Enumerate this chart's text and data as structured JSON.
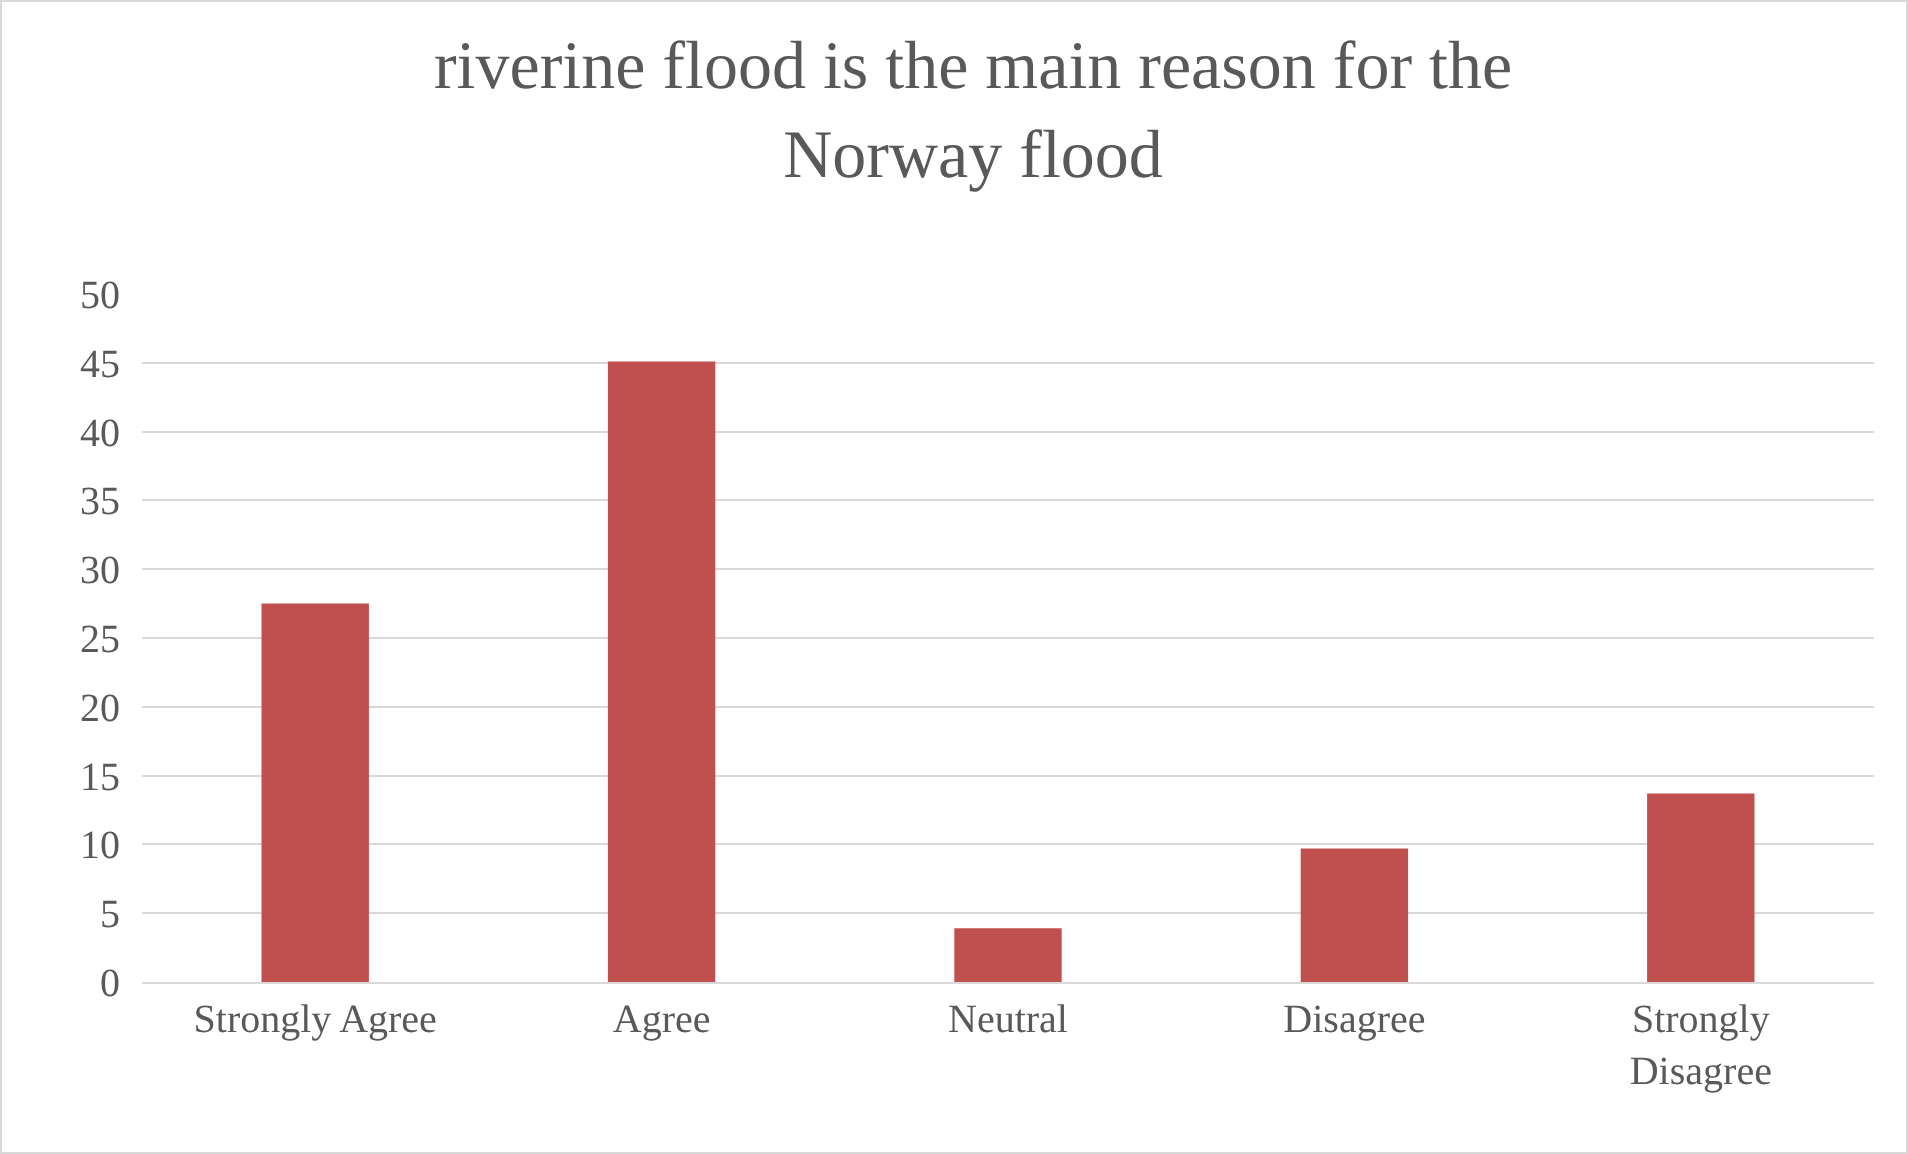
{
  "chart_data": {
    "type": "bar",
    "title": "riverine flood is the main reason for the Norway flood",
    "categories": [
      "Strongly Agree",
      "Agree",
      "Neutral",
      "Disagree",
      "Strongly Disagree"
    ],
    "values": [
      27.5,
      45.1,
      3.9,
      9.7,
      13.7
    ],
    "color": "#c0504d",
    "ylim": [
      0,
      50
    ],
    "yticks": [
      0,
      5,
      10,
      15,
      20,
      25,
      30,
      35,
      40,
      45,
      50
    ],
    "grid": "y"
  }
}
